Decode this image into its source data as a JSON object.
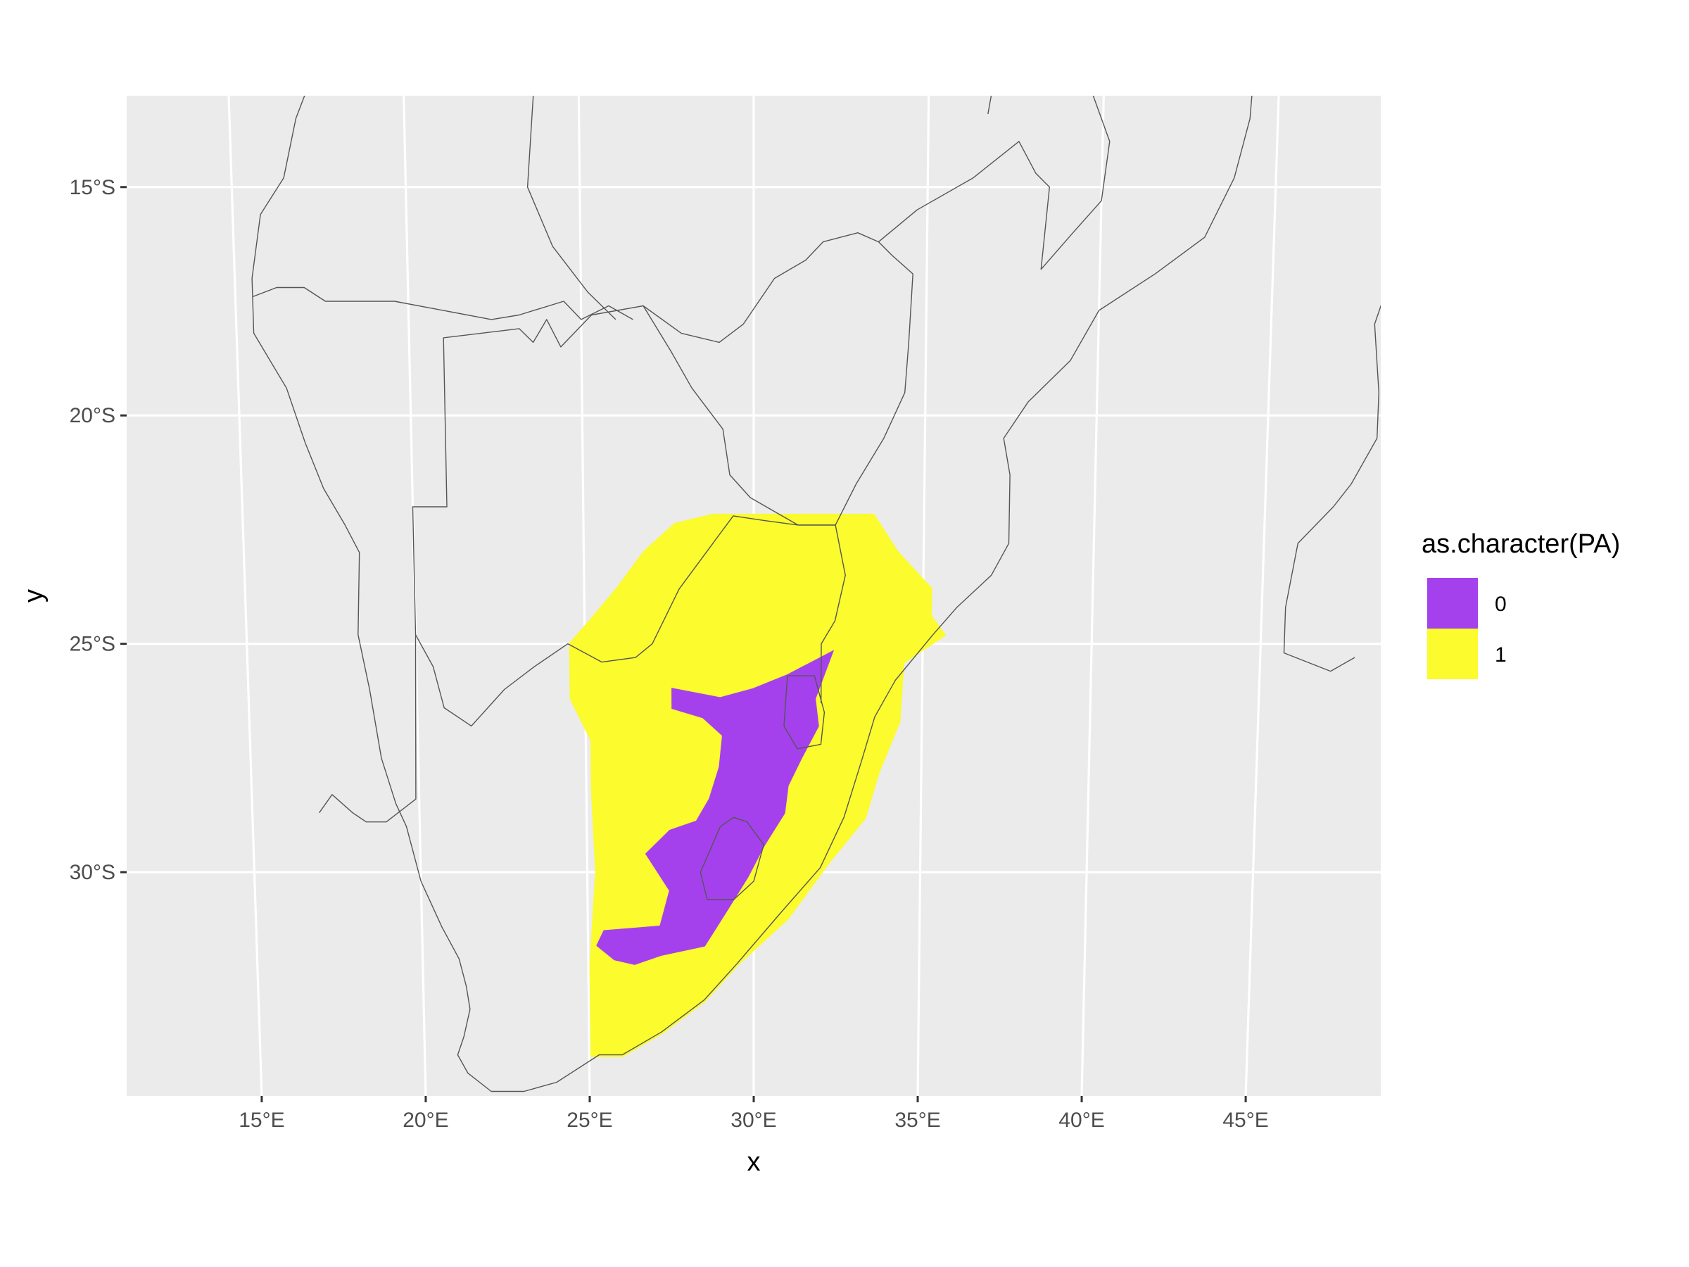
{
  "chart_data": {
    "type": "map-raster",
    "xlabel": "x",
    "ylabel": "y",
    "x_ticks": [
      "15°E",
      "20°E",
      "25°E",
      "30°E",
      "35°E",
      "40°E",
      "45°E"
    ],
    "y_ticks": [
      "15°S",
      "20°S",
      "25°S",
      "30°S"
    ],
    "xlim": [
      11.5,
      48.5
    ],
    "ylim": [
      -34.9,
      -13.0
    ],
    "legend": {
      "title": "as.character(PA)",
      "position": "right",
      "items": [
        {
          "label": "0",
          "color": "#A541EC"
        },
        {
          "label": "1",
          "color": "#FBFB2E"
        }
      ]
    },
    "colors": {
      "panel": "#EBEBEB",
      "grid": "#FFFFFF",
      "border": "#555555",
      "absence": "#A541EC",
      "presence": "#FBFB2E"
    },
    "regions": {
      "presence_1": [
        [
          31.5,
          -22.2
        ],
        [
          33.5,
          -22.2
        ],
        [
          34.2,
          -23.0
        ],
        [
          35.2,
          -23.8
        ],
        [
          35.2,
          -24.4
        ],
        [
          35.6,
          -24.8
        ],
        [
          34.4,
          -25.4
        ],
        [
          34.3,
          -26.7
        ],
        [
          33.7,
          -27.8
        ],
        [
          33.3,
          -28.8
        ],
        [
          32.2,
          -29.8
        ],
        [
          31.0,
          -31.0
        ],
        [
          29.5,
          -32.0
        ],
        [
          28.5,
          -32.8
        ],
        [
          27.2,
          -33.5
        ],
        [
          26.0,
          -34.0
        ],
        [
          25.1,
          -34.0
        ],
        [
          25.1,
          -32.0
        ],
        [
          25.3,
          -30.0
        ],
        [
          25.2,
          -28.2
        ],
        [
          25.2,
          -27.1
        ],
        [
          24.6,
          -26.2
        ],
        [
          24.6,
          -25.0
        ],
        [
          25.2,
          -24.5
        ],
        [
          26.0,
          -23.8
        ],
        [
          26.8,
          -23.0
        ],
        [
          27.7,
          -22.4
        ],
        [
          28.8,
          -22.2
        ]
      ],
      "absence_0": [
        [
          32.3,
          -25.2
        ],
        [
          31.8,
          -26.2
        ],
        [
          31.9,
          -26.8
        ],
        [
          31.4,
          -27.5
        ],
        [
          31.0,
          -28.1
        ],
        [
          30.9,
          -28.7
        ],
        [
          30.3,
          -29.4
        ],
        [
          29.8,
          -30.1
        ],
        [
          29.2,
          -30.8
        ],
        [
          28.5,
          -31.6
        ],
        [
          27.2,
          -31.8
        ],
        [
          26.4,
          -32.0
        ],
        [
          25.8,
          -31.9
        ],
        [
          25.3,
          -31.6
        ],
        [
          25.5,
          -31.3
        ],
        [
          27.2,
          -31.2
        ],
        [
          27.5,
          -30.4
        ],
        [
          26.8,
          -29.6
        ],
        [
          27.5,
          -29.1
        ],
        [
          28.3,
          -28.9
        ],
        [
          28.7,
          -28.4
        ],
        [
          29.0,
          -27.7
        ],
        [
          29.1,
          -27.0
        ],
        [
          28.5,
          -26.6
        ],
        [
          27.6,
          -26.4
        ],
        [
          27.6,
          -26.0
        ],
        [
          29.0,
          -26.2
        ],
        [
          30.0,
          -26.0
        ],
        [
          31.0,
          -25.7
        ]
      ]
    },
    "borders": [
      [
        [
          17.7,
          -12.0
        ],
        [
          16.9,
          -13.5
        ],
        [
          16.5,
          -14.8
        ],
        [
          15.8,
          -15.6
        ],
        [
          15.5,
          -17.0
        ],
        [
          15.5,
          -18.2
        ],
        [
          16.4,
          -19.4
        ],
        [
          16.9,
          -20.6
        ],
        [
          17.4,
          -21.6
        ],
        [
          18.0,
          -22.4
        ],
        [
          18.4,
          -23.0
        ],
        [
          18.3,
          -24.8
        ],
        [
          18.6,
          -26.0
        ],
        [
          18.9,
          -27.5
        ],
        [
          19.3,
          -28.5
        ],
        [
          19.6,
          -29.0
        ],
        [
          20.0,
          -30.2
        ],
        [
          20.6,
          -31.2
        ],
        [
          21.1,
          -31.9
        ],
        [
          21.3,
          -32.5
        ],
        [
          21.4,
          -33.0
        ],
        [
          21.2,
          -33.6
        ],
        [
          21.0,
          -34.0
        ],
        [
          21.3,
          -34.4
        ],
        [
          22.0,
          -34.8
        ],
        [
          23.0,
          -34.8
        ],
        [
          24.0,
          -34.6
        ],
        [
          25.3,
          -34.0
        ],
        [
          26.0,
          -34.0
        ],
        [
          27.2,
          -33.5
        ],
        [
          28.5,
          -32.8
        ],
        [
          29.5,
          -32.0
        ],
        [
          30.8,
          -30.9
        ],
        [
          32.0,
          -29.9
        ],
        [
          32.7,
          -28.8
        ],
        [
          33.2,
          -27.6
        ],
        [
          33.6,
          -26.6
        ],
        [
          34.2,
          -25.8
        ],
        [
          35.3,
          -24.8
        ],
        [
          36.0,
          -24.2
        ],
        [
          37.0,
          -23.5
        ],
        [
          37.5,
          -22.8
        ],
        [
          37.5,
          -21.3
        ],
        [
          37.3,
          -20.5
        ],
        [
          38.0,
          -19.7
        ],
        [
          39.2,
          -18.8
        ],
        [
          40.0,
          -17.7
        ],
        [
          41.6,
          -16.9
        ],
        [
          43.0,
          -16.1
        ],
        [
          43.8,
          -14.8
        ],
        [
          44.2,
          -13.5
        ],
        [
          44.3,
          -12.0
        ]
      ],
      [
        [
          15.5,
          -17.4
        ],
        [
          16.2,
          -17.2
        ],
        [
          17.0,
          -17.2
        ],
        [
          17.6,
          -17.5
        ],
        [
          19.6,
          -17.5
        ],
        [
          22.4,
          -17.9
        ],
        [
          23.2,
          -17.8
        ],
        [
          24.5,
          -17.5
        ],
        [
          25.0,
          -17.9
        ],
        [
          25.8,
          -17.6
        ],
        [
          26.5,
          -17.9
        ]
      ],
      [
        [
          17.0,
          -28.7
        ],
        [
          17.4,
          -28.3
        ],
        [
          18.0,
          -28.7
        ],
        [
          18.4,
          -28.9
        ],
        [
          19.0,
          -28.9
        ],
        [
          19.9,
          -28.4
        ],
        [
          20.0,
          -24.8
        ],
        [
          20.0,
          -22.0
        ],
        [
          21.0,
          -22.0
        ],
        [
          21.0,
          -18.3
        ],
        [
          23.2,
          -18.1
        ],
        [
          23.6,
          -18.4
        ],
        [
          24.0,
          -17.9
        ],
        [
          24.4,
          -18.5
        ],
        [
          25.3,
          -17.8
        ],
        [
          26.8,
          -17.6
        ],
        [
          27.9,
          -18.2
        ],
        [
          29.0,
          -18.4
        ],
        [
          29.7,
          -18.0
        ],
        [
          30.6,
          -17.0
        ],
        [
          31.5,
          -16.6
        ],
        [
          32.0,
          -16.2
        ],
        [
          33.0,
          -16.0
        ],
        [
          33.6,
          -16.2
        ],
        [
          34.0,
          -16.5
        ],
        [
          34.6,
          -16.9
        ],
        [
          34.5,
          -18.4
        ],
        [
          34.4,
          -19.5
        ],
        [
          33.8,
          -20.5
        ],
        [
          33.0,
          -21.5
        ],
        [
          32.4,
          -22.4
        ]
      ],
      [
        [
          20.0,
          -24.8
        ],
        [
          20.5,
          -25.5
        ],
        [
          20.8,
          -26.4
        ],
        [
          21.6,
          -26.8
        ],
        [
          22.6,
          -26.0
        ],
        [
          23.5,
          -25.5
        ],
        [
          24.5,
          -25.0
        ],
        [
          25.5,
          -25.4
        ],
        [
          26.5,
          -25.3
        ],
        [
          27.0,
          -25.0
        ],
        [
          27.8,
          -23.8
        ],
        [
          28.8,
          -22.8
        ],
        [
          29.4,
          -22.2
        ],
        [
          30.3,
          -22.3
        ],
        [
          31.3,
          -22.4
        ],
        [
          32.4,
          -22.4
        ]
      ],
      [
        [
          26.8,
          -17.6
        ],
        [
          27.6,
          -18.6
        ],
        [
          28.2,
          -19.4
        ],
        [
          29.1,
          -20.3
        ],
        [
          29.3,
          -21.3
        ],
        [
          29.9,
          -21.8
        ],
        [
          31.3,
          -22.4
        ]
      ],
      [
        [
          31.3,
          -22.4
        ],
        [
          32.4,
          -22.4
        ],
        [
          32.7,
          -23.5
        ],
        [
          32.4,
          -24.5
        ],
        [
          32.0,
          -25.0
        ],
        [
          32.0,
          -26.3
        ]
      ],
      [
        [
          31.0,
          -25.7
        ],
        [
          31.8,
          -25.7
        ],
        [
          32.1,
          -26.5
        ],
        [
          32.0,
          -27.2
        ],
        [
          31.3,
          -27.3
        ],
        [
          30.9,
          -26.8
        ],
        [
          31.0,
          -25.7
        ]
      ],
      [
        [
          28.4,
          -30.0
        ],
        [
          29.0,
          -29.0
        ],
        [
          29.4,
          -28.8
        ],
        [
          29.8,
          -28.9
        ],
        [
          30.3,
          -29.4
        ],
        [
          30.0,
          -30.2
        ],
        [
          29.4,
          -30.6
        ],
        [
          28.6,
          -30.6
        ],
        [
          28.4,
          -30.0
        ]
      ],
      [
        [
          23.8,
          -12.0
        ],
        [
          23.5,
          -15.0
        ],
        [
          24.2,
          -16.3
        ],
        [
          25.2,
          -17.3
        ],
        [
          26.0,
          -17.9
        ]
      ],
      [
        [
          33.6,
          -16.2
        ],
        [
          34.7,
          -15.5
        ],
        [
          36.3,
          -14.8
        ],
        [
          37.6,
          -14.0
        ],
        [
          38.1,
          -14.7
        ],
        [
          38.5,
          -15.0
        ],
        [
          38.4,
          -15.9
        ],
        [
          38.3,
          -16.8
        ],
        [
          39.2,
          -16.0
        ],
        [
          40.0,
          -15.3
        ],
        [
          40.2,
          -14.0
        ],
        [
          39.7,
          -13.0
        ],
        [
          39.4,
          -12.4
        ],
        [
          39.0,
          -12.0
        ]
      ],
      [
        [
          37.0,
          -12.0
        ],
        [
          36.7,
          -13.4
        ]
      ],
      [
        [
          30.7,
          -12.5
        ],
        [
          30.3,
          -12.0
        ]
      ],
      [
        [
          48.4,
          -17.0
        ],
        [
          48.0,
          -18.0
        ],
        [
          48.2,
          -19.5
        ],
        [
          48.2,
          -20.5
        ],
        [
          47.5,
          -21.5
        ],
        [
          47.0,
          -22.0
        ],
        [
          46.0,
          -22.8
        ],
        [
          45.7,
          -24.2
        ],
        [
          45.7,
          -25.2
        ],
        [
          47.1,
          -25.6
        ],
        [
          47.8,
          -25.3
        ]
      ]
    ]
  }
}
